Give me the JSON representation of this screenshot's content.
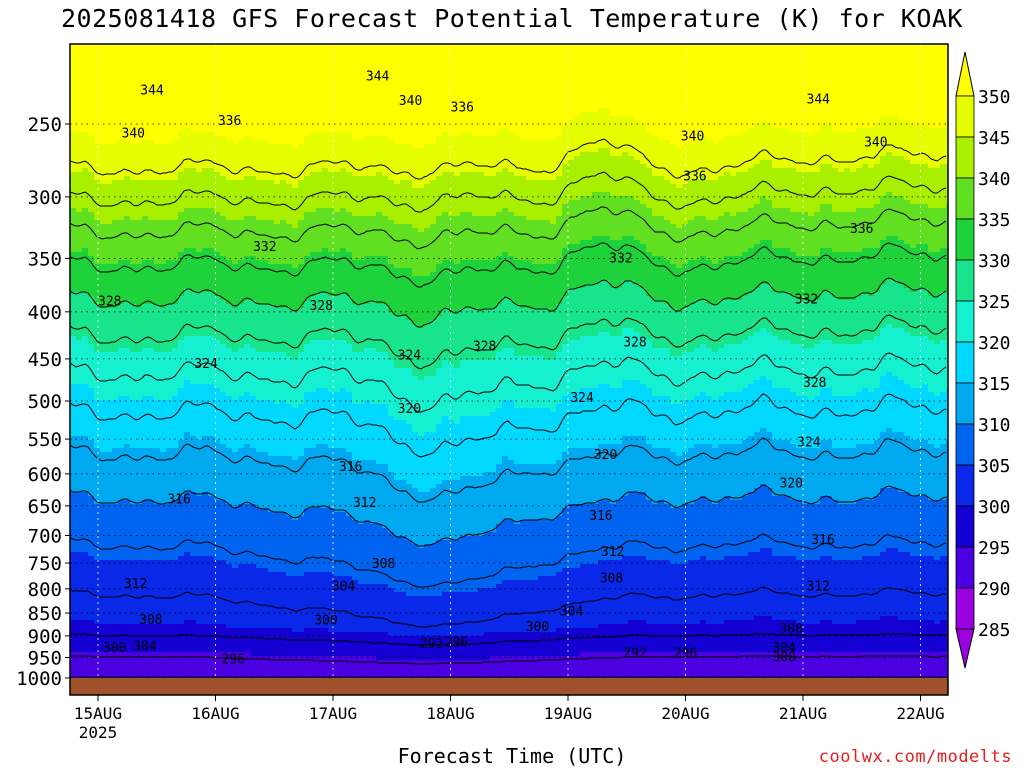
{
  "title": "2025081418 GFS Forecast Potential Temperature (K) for KOAK",
  "credit": "coolwx.com/modelts",
  "chart_data": {
    "type": "heatmap",
    "title": "2025081418 GFS Forecast Potential Temperature (K) for KOAK",
    "xlabel": "Forecast Time (UTC)",
    "ylabel": "",
    "x_ticks": [
      "15AUG",
      "16AUG",
      "17AUG",
      "18AUG",
      "19AUG",
      "20AUG",
      "21AUG",
      "22AUG"
    ],
    "x_tick_sublabel": "2025",
    "y_ticks": [
      250,
      300,
      350,
      400,
      450,
      500,
      550,
      600,
      650,
      700,
      750,
      800,
      850,
      900,
      950,
      1000
    ],
    "colorbar": {
      "ticks": [
        350,
        345,
        340,
        335,
        330,
        325,
        320,
        315,
        310,
        305,
        300,
        295,
        290,
        285
      ],
      "colors": [
        "#ffff00",
        "#e6ff00",
        "#a8f000",
        "#60e020",
        "#1ed23c",
        "#18e48c",
        "#14f0d0",
        "#00d8ff",
        "#00a8f0",
        "#0064f0",
        "#0a28e8",
        "#1400d2",
        "#4a00e0",
        "#9b00e0"
      ]
    },
    "grid": true,
    "contour_interval": 4,
    "contour_labels": [
      {
        "day": 0.46,
        "p": 230,
        "v": "344"
      },
      {
        "day": 2.38,
        "p": 222,
        "v": "344"
      },
      {
        "day": 6.13,
        "p": 235,
        "v": "344"
      },
      {
        "day": 0.3,
        "p": 256,
        "v": "340"
      },
      {
        "day": 2.66,
        "p": 236,
        "v": "340"
      },
      {
        "day": 5.06,
        "p": 258,
        "v": "340"
      },
      {
        "day": 6.62,
        "p": 262,
        "v": "340"
      },
      {
        "day": 1.12,
        "p": 248,
        "v": "336"
      },
      {
        "day": 3.1,
        "p": 240,
        "v": "336"
      },
      {
        "day": 5.08,
        "p": 285,
        "v": "336"
      },
      {
        "day": 6.5,
        "p": 325,
        "v": "336"
      },
      {
        "day": 1.42,
        "p": 340,
        "v": "332"
      },
      {
        "day": 4.45,
        "p": 350,
        "v": "332"
      },
      {
        "day": 6.03,
        "p": 388,
        "v": "332"
      },
      {
        "day": 0.1,
        "p": 390,
        "v": "328"
      },
      {
        "day": 1.9,
        "p": 394,
        "v": "328"
      },
      {
        "day": 3.29,
        "p": 436,
        "v": "328"
      },
      {
        "day": 4.57,
        "p": 432,
        "v": "328"
      },
      {
        "day": 6.1,
        "p": 478,
        "v": "328"
      },
      {
        "day": 0.92,
        "p": 456,
        "v": "324"
      },
      {
        "day": 2.65,
        "p": 446,
        "v": "324"
      },
      {
        "day": 4.12,
        "p": 496,
        "v": "324"
      },
      {
        "day": 6.05,
        "p": 555,
        "v": "324"
      },
      {
        "day": 2.65,
        "p": 510,
        "v": "320"
      },
      {
        "day": 4.32,
        "p": 572,
        "v": "320"
      },
      {
        "day": 5.9,
        "p": 615,
        "v": "320"
      },
      {
        "day": 0.69,
        "p": 640,
        "v": "316"
      },
      {
        "day": 2.15,
        "p": 590,
        "v": "316"
      },
      {
        "day": 4.28,
        "p": 667,
        "v": "316"
      },
      {
        "day": 6.17,
        "p": 708,
        "v": "316"
      },
      {
        "day": 2.27,
        "p": 645,
        "v": "312"
      },
      {
        "day": 4.38,
        "p": 730,
        "v": "312"
      },
      {
        "day": 6.13,
        "p": 795,
        "v": "312"
      },
      {
        "day": 0.32,
        "p": 790,
        "v": "312"
      },
      {
        "day": 0.45,
        "p": 865,
        "v": "308"
      },
      {
        "day": 2.43,
        "p": 752,
        "v": "308"
      },
      {
        "day": 4.37,
        "p": 780,
        "v": "308"
      },
      {
        "day": 5.9,
        "p": 885,
        "v": "308"
      },
      {
        "day": 2.09,
        "p": 795,
        "v": "304"
      },
      {
        "day": 4.03,
        "p": 847,
        "v": "304"
      },
      {
        "day": 0.4,
        "p": 924,
        "v": "304"
      },
      {
        "day": 5.84,
        "p": 928,
        "v": "304"
      },
      {
        "day": 1.94,
        "p": 866,
        "v": "300"
      },
      {
        "day": 3.74,
        "p": 880,
        "v": "300"
      },
      {
        "day": 0.14,
        "p": 928,
        "v": "300"
      },
      {
        "day": 5.84,
        "p": 950,
        "v": "300"
      },
      {
        "day": 2.84,
        "p": 919,
        "v": "292"
      },
      {
        "day": 3.05,
        "p": 915,
        "v": "296"
      },
      {
        "day": 4.57,
        "p": 940,
        "v": "292"
      },
      {
        "day": 5.0,
        "p": 940,
        "v": "296"
      },
      {
        "day": 1.15,
        "p": 955,
        "v": "296"
      }
    ]
  }
}
